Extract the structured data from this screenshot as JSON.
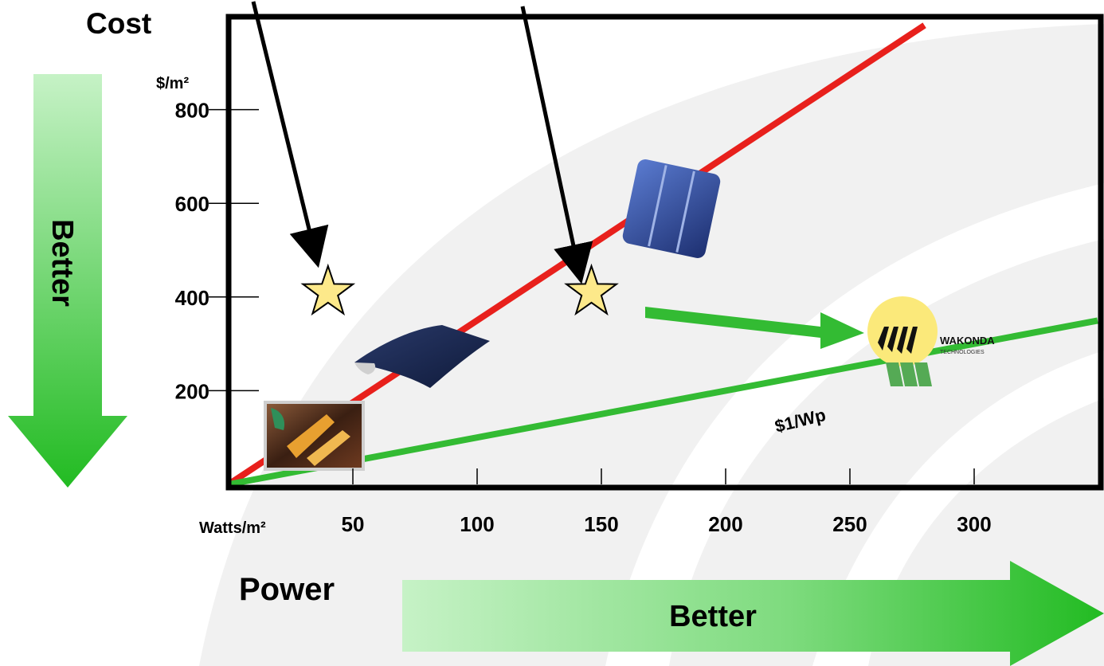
{
  "chart_data": {
    "type": "line",
    "ylabel": "Cost",
    "yunit": "$/m²",
    "xlabel": "Power",
    "xunit": "Watts/m²",
    "xticks": [
      50,
      100,
      150,
      200,
      250,
      300
    ],
    "yticks": [
      200,
      400,
      600,
      800
    ],
    "series": [
      {
        "name": "",
        "color": "#e8201c",
        "x": [
          0,
          280
        ],
        "y": [
          0,
          980
        ]
      },
      {
        "name": "$1/Wp",
        "color": "#33bb33",
        "x": [
          0,
          350
        ],
        "y": [
          0,
          350
        ]
      }
    ],
    "stars": [
      {
        "x": 40,
        "y": 410
      },
      {
        "x": 146,
        "y": 410
      }
    ],
    "annotations": {
      "line_label": "$1/Wp",
      "logo_text": "WAKONDA",
      "logo_subtext": "TECHNOLOGIES"
    },
    "better_label": "Better",
    "colors": {
      "arrow_green_light": "#c6f2c6",
      "arrow_green_dark": "#22bb22",
      "star_fill": "#fde98a",
      "logo_sun": "#fbe97a"
    }
  }
}
